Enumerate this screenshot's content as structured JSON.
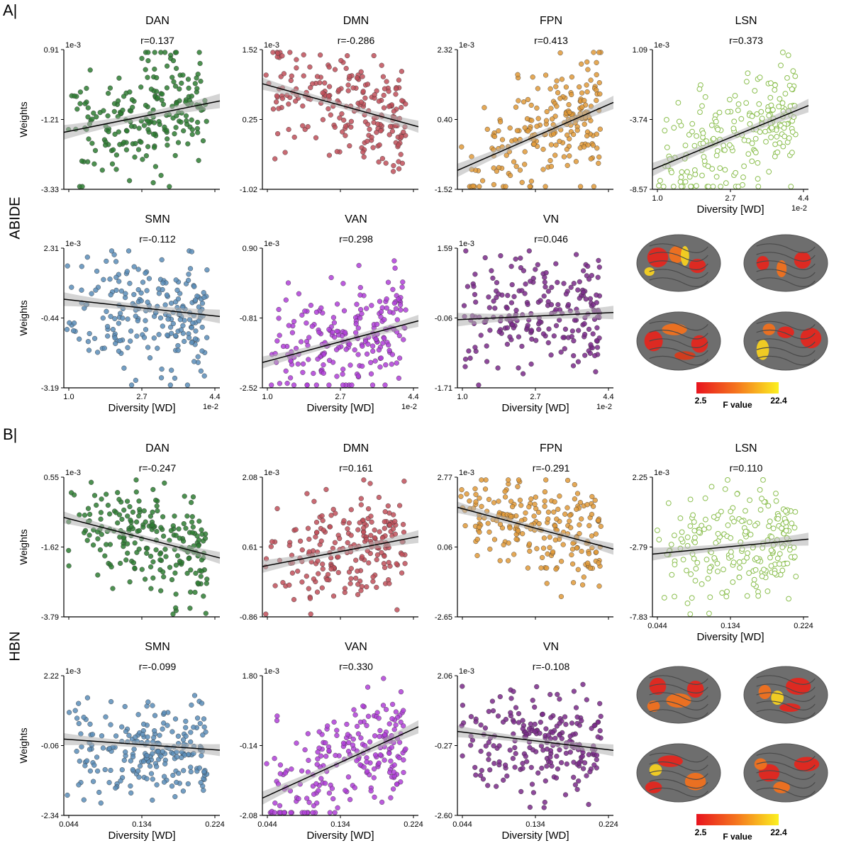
{
  "panel_a_label": "A|",
  "panel_b_label": "B|",
  "row_a_label": "ABIDE",
  "row_b_label": "HBN",
  "colorbars": [
    {
      "min_label": "2.5",
      "max_label": "22.4",
      "label": "F value"
    },
    {
      "min_label": "2.5",
      "max_label": "22.4",
      "label": "F value"
    }
  ],
  "chart_data": [
    {
      "type": "scatter",
      "title": "DAN",
      "r": "r=0.137",
      "ylabel": "Weights",
      "xlabel": "",
      "exp_y": "1e-3",
      "exp_x": "",
      "yticks": [
        "0.91",
        "-1.21",
        "-3.33"
      ],
      "xticks": [],
      "ylim": [
        -3.33,
        0.91
      ],
      "xlim": [
        1.0,
        4.4
      ],
      "color": "#2e7d32",
      "hollow": false,
      "slope": 0.28,
      "intercept": -1.6,
      "spread": 0.9,
      "center": -1.0
    },
    {
      "type": "scatter",
      "title": "DMN",
      "r": "r=-0.286",
      "ylabel": "",
      "xlabel": "",
      "exp_y": "1e-3",
      "exp_x": "",
      "yticks": [
        "1.52",
        "0.25",
        "-1.02"
      ],
      "xticks": [],
      "ylim": [
        -1.02,
        1.52
      ],
      "xlim": [
        1.0,
        4.4
      ],
      "color": "#c0505a",
      "hollow": false,
      "slope": -0.23,
      "intercept": 0.9,
      "spread": 0.45,
      "center": 0.3
    },
    {
      "type": "scatter",
      "title": "FPN",
      "r": "r=0.413",
      "ylabel": "",
      "xlabel": "",
      "exp_y": "1e-3",
      "exp_x": "",
      "yticks": [
        "2.32",
        "0.40",
        "-1.52"
      ],
      "xticks": [],
      "ylim": [
        -1.52,
        2.32
      ],
      "xlim": [
        1.0,
        4.4
      ],
      "color": "#e09a3a",
      "hollow": false,
      "slope": 0.55,
      "intercept": -1.0,
      "spread": 0.75,
      "center": 0.5
    },
    {
      "type": "scatter",
      "title": "LSN",
      "r": "r=0.373",
      "ylabel": "",
      "xlabel": "Diversity [WD]",
      "exp_y": "1e-3",
      "exp_x": "1e-2",
      "yticks": [
        "1.09",
        "-3.74",
        "-8.57"
      ],
      "xticks": [
        "1.0",
        "2.7",
        "4.4"
      ],
      "ylim": [
        -8.57,
        1.09
      ],
      "xlim": [
        1.0,
        4.4
      ],
      "color": "#8cbf50",
      "hollow": true,
      "slope": 1.3,
      "intercept": -7.2,
      "spread": 1.9,
      "center": -3.5
    },
    {
      "type": "scatter",
      "title": "SMN",
      "r": "r=-0.112",
      "ylabel": "Weights",
      "xlabel": "Diversity [WD]",
      "exp_y": "1e-3",
      "exp_x": "1e-2",
      "yticks": [
        "2.31",
        "-0.44",
        "-3.19"
      ],
      "xticks": [
        "1.0",
        "2.7",
        "4.4"
      ],
      "ylim": [
        -3.19,
        2.31
      ],
      "xlim": [
        1.0,
        4.4
      ],
      "color": "#5b8db8",
      "hollow": false,
      "slope": -0.2,
      "intercept": 0.3,
      "spread": 1.1,
      "center": -0.4
    },
    {
      "type": "scatter",
      "title": "VAN",
      "r": "r=0.298",
      "ylabel": "",
      "xlabel": "Diversity [WD]",
      "exp_y": "1e-3",
      "exp_x": "1e-2",
      "yticks": [
        "0.90",
        "-0.81",
        "-2.52"
      ],
      "xticks": [
        "1.0",
        "2.7",
        "4.4"
      ],
      "ylim": [
        -2.52,
        0.9
      ],
      "xlim": [
        1.0,
        4.4
      ],
      "color": "#b040d8",
      "hollow": false,
      "slope": 0.3,
      "intercept": -1.9,
      "spread": 0.6,
      "center": -0.9
    },
    {
      "type": "scatter",
      "title": "VN",
      "r": "r=0.046",
      "ylabel": "",
      "xlabel": "Diversity [WD]",
      "exp_y": "1e-3",
      "exp_x": "1e-2",
      "yticks": [
        "1.59",
        "-0.06",
        "-1.71"
      ],
      "xticks": [
        "1.0",
        "2.7",
        "4.4"
      ],
      "ylim": [
        -1.71,
        1.59
      ],
      "xlim": [
        1.0,
        4.4
      ],
      "color": "#7a2a8a",
      "hollow": false,
      "slope": 0.05,
      "intercept": -0.1,
      "spread": 0.65,
      "center": -0.05
    },
    {
      "type": "scatter",
      "title": "DAN",
      "r": "r=-0.247",
      "ylabel": "Weights",
      "xlabel": "",
      "exp_y": "1e-3",
      "exp_x": "",
      "yticks": [
        "0.55",
        "-1.62",
        "-3.79"
      ],
      "xticks": [],
      "ylim": [
        -3.79,
        0.55
      ],
      "xlim": [
        0.044,
        0.224
      ],
      "color": "#2e7d32",
      "hollow": false,
      "slope": -7.0,
      "intercept": -0.7,
      "spread": 0.75,
      "center": -1.6
    },
    {
      "type": "scatter",
      "title": "DMN",
      "r": "r=0.161",
      "ylabel": "",
      "xlabel": "",
      "exp_y": "1e-3",
      "exp_x": "",
      "yticks": [
        "2.08",
        "0.61",
        "-0.86"
      ],
      "xticks": [],
      "ylim": [
        -0.86,
        2.08
      ],
      "xlim": [
        0.044,
        0.224
      ],
      "color": "#c0505a",
      "hollow": false,
      "slope": 3.5,
      "intercept": 0.2,
      "spread": 0.55,
      "center": 0.7
    },
    {
      "type": "scatter",
      "title": "FPN",
      "r": "r=-0.291",
      "ylabel": "",
      "xlabel": "",
      "exp_y": "1e-3",
      "exp_x": "",
      "yticks": [
        "2.77",
        "0.06",
        "-2.65"
      ],
      "xticks": [],
      "ylim": [
        -2.65,
        2.77
      ],
      "xlim": [
        0.044,
        0.224
      ],
      "color": "#e09a3a",
      "hollow": false,
      "slope": -9.0,
      "intercept": 1.6,
      "spread": 0.9,
      "center": 0.2
    },
    {
      "type": "scatter",
      "title": "LSN",
      "r": "r=0.110",
      "ylabel": "",
      "xlabel": "Diversity [WD]",
      "exp_y": "1e-3",
      "exp_x": "",
      "yticks": [
        "2.25",
        "-2.79",
        "-7.83"
      ],
      "xticks": [
        "0.044",
        "0.134",
        "0.224"
      ],
      "ylim": [
        -7.83,
        2.25
      ],
      "xlim": [
        0.044,
        0.224
      ],
      "color": "#8cbf50",
      "hollow": true,
      "slope": 6.0,
      "intercept": -3.3,
      "spread": 1.9,
      "center": -2.5
    },
    {
      "type": "scatter",
      "title": "SMN",
      "r": "r=-0.099",
      "ylabel": "Weights",
      "xlabel": "Diversity [WD]",
      "exp_y": "1e-3",
      "exp_x": "",
      "yticks": [
        "2.22",
        "-0.06",
        "-2.34"
      ],
      "xticks": [
        "0.044",
        "0.134",
        "0.224"
      ],
      "ylim": [
        -2.34,
        2.22
      ],
      "xlim": [
        0.044,
        0.224
      ],
      "color": "#5b8db8",
      "hollow": false,
      "slope": -2.0,
      "intercept": 0.15,
      "spread": 0.8,
      "center": -0.1
    },
    {
      "type": "scatter",
      "title": "VAN",
      "r": "r=0.330",
      "ylabel": "",
      "xlabel": "Diversity [WD]",
      "exp_y": "1e-3",
      "exp_x": "",
      "yticks": [
        "1.80",
        "-0.14",
        "-2.08"
      ],
      "xticks": [
        "0.044",
        "0.134",
        "0.224"
      ],
      "ylim": [
        -2.08,
        1.8
      ],
      "xlim": [
        0.044,
        0.224
      ],
      "color": "#b040d8",
      "hollow": false,
      "slope": 11.0,
      "intercept": -1.6,
      "spread": 0.75,
      "center": -0.1
    },
    {
      "type": "scatter",
      "title": "VN",
      "r": "r=-0.108",
      "ylabel": "",
      "xlabel": "Diversity [WD]",
      "exp_y": "1e-3",
      "exp_x": "",
      "yticks": [
        "2.06",
        "-0.27",
        "-2.60"
      ],
      "xticks": [
        "0.044",
        "0.134",
        "0.224"
      ],
      "ylim": [
        -2.6,
        2.06
      ],
      "xlim": [
        0.044,
        0.224
      ],
      "color": "#7a2a8a",
      "hollow": false,
      "slope": -3.5,
      "intercept": 0.2,
      "spread": 0.8,
      "center": -0.3
    }
  ]
}
